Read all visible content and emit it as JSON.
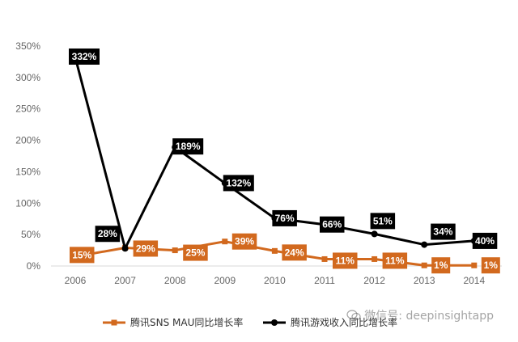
{
  "chart_data": {
    "type": "line",
    "categories": [
      "2006",
      "2007",
      "2008",
      "2009",
      "2010",
      "2011",
      "2012",
      "2013",
      "2014"
    ],
    "series": [
      {
        "name": "腾讯SNS MAU同比增长率",
        "values": [
          15,
          29,
          25,
          39,
          24,
          11,
          11,
          1,
          1
        ],
        "labels": [
          "15%",
          "29%",
          "25%",
          "39%",
          "24%",
          "11%",
          "11%",
          "1%",
          "1%"
        ],
        "color": "#d2691e"
      },
      {
        "name": "腾讯游戏收入同比增长率",
        "values": [
          332,
          28,
          189,
          132,
          76,
          66,
          51,
          34,
          40
        ],
        "labels": [
          "332%",
          "28%",
          "189%",
          "132%",
          "76%",
          "66%",
          "51%",
          "34%",
          "40%"
        ],
        "color": "#000000"
      }
    ],
    "yticks": [
      "0%",
      "50%",
      "100%",
      "150%",
      "200%",
      "250%",
      "300%",
      "350%"
    ],
    "ylim": [
      0,
      350
    ],
    "grid": false,
    "legend": "bottom"
  },
  "watermark": {
    "text": "微信号: deepinsightapp"
  }
}
